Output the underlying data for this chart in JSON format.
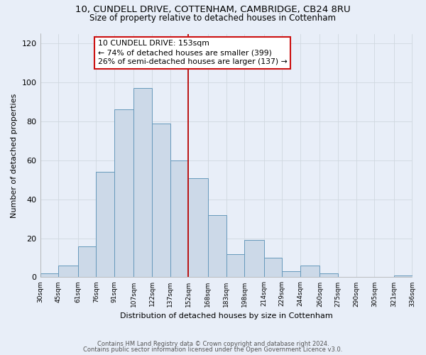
{
  "title_line1": "10, CUNDELL DRIVE, COTTENHAM, CAMBRIDGE, CB24 8RU",
  "title_line2": "Size of property relative to detached houses in Cottenham",
  "xlabel": "Distribution of detached houses by size in Cottenham",
  "ylabel": "Number of detached properties",
  "bar_left_edges": [
    30,
    45,
    61,
    76,
    91,
    107,
    122,
    137,
    152,
    168,
    183,
    198,
    214,
    229,
    244,
    260,
    275,
    290,
    305,
    321
  ],
  "bar_widths": [
    15,
    16,
    15,
    15,
    16,
    15,
    15,
    15,
    16,
    15,
    15,
    16,
    15,
    15,
    16,
    15,
    15,
    15,
    16,
    15
  ],
  "bar_heights": [
    2,
    6,
    16,
    54,
    86,
    97,
    79,
    60,
    51,
    32,
    12,
    19,
    10,
    3,
    6,
    2,
    0,
    0,
    0,
    1
  ],
  "tick_labels": [
    "30sqm",
    "45sqm",
    "61sqm",
    "76sqm",
    "91sqm",
    "107sqm",
    "122sqm",
    "137sqm",
    "152sqm",
    "168sqm",
    "183sqm",
    "198sqm",
    "214sqm",
    "229sqm",
    "244sqm",
    "260sqm",
    "275sqm",
    "290sqm",
    "305sqm",
    "321sqm",
    "336sqm"
  ],
  "bar_fill_color": "#ccd9e8",
  "bar_edge_color": "#6699bb",
  "vline_x": 152,
  "vline_color": "#bb1111",
  "annotation_text": "10 CUNDELL DRIVE: 153sqm\n← 74% of detached houses are smaller (399)\n26% of semi-detached houses are larger (137) →",
  "grid_color": "#d0d8e0",
  "background_color": "#e8eef8",
  "ylim": [
    0,
    125
  ],
  "yticks": [
    0,
    20,
    40,
    60,
    80,
    100,
    120
  ],
  "footer_line1": "Contains HM Land Registry data © Crown copyright and database right 2024.",
  "footer_line2": "Contains public sector information licensed under the Open Government Licence v3.0."
}
